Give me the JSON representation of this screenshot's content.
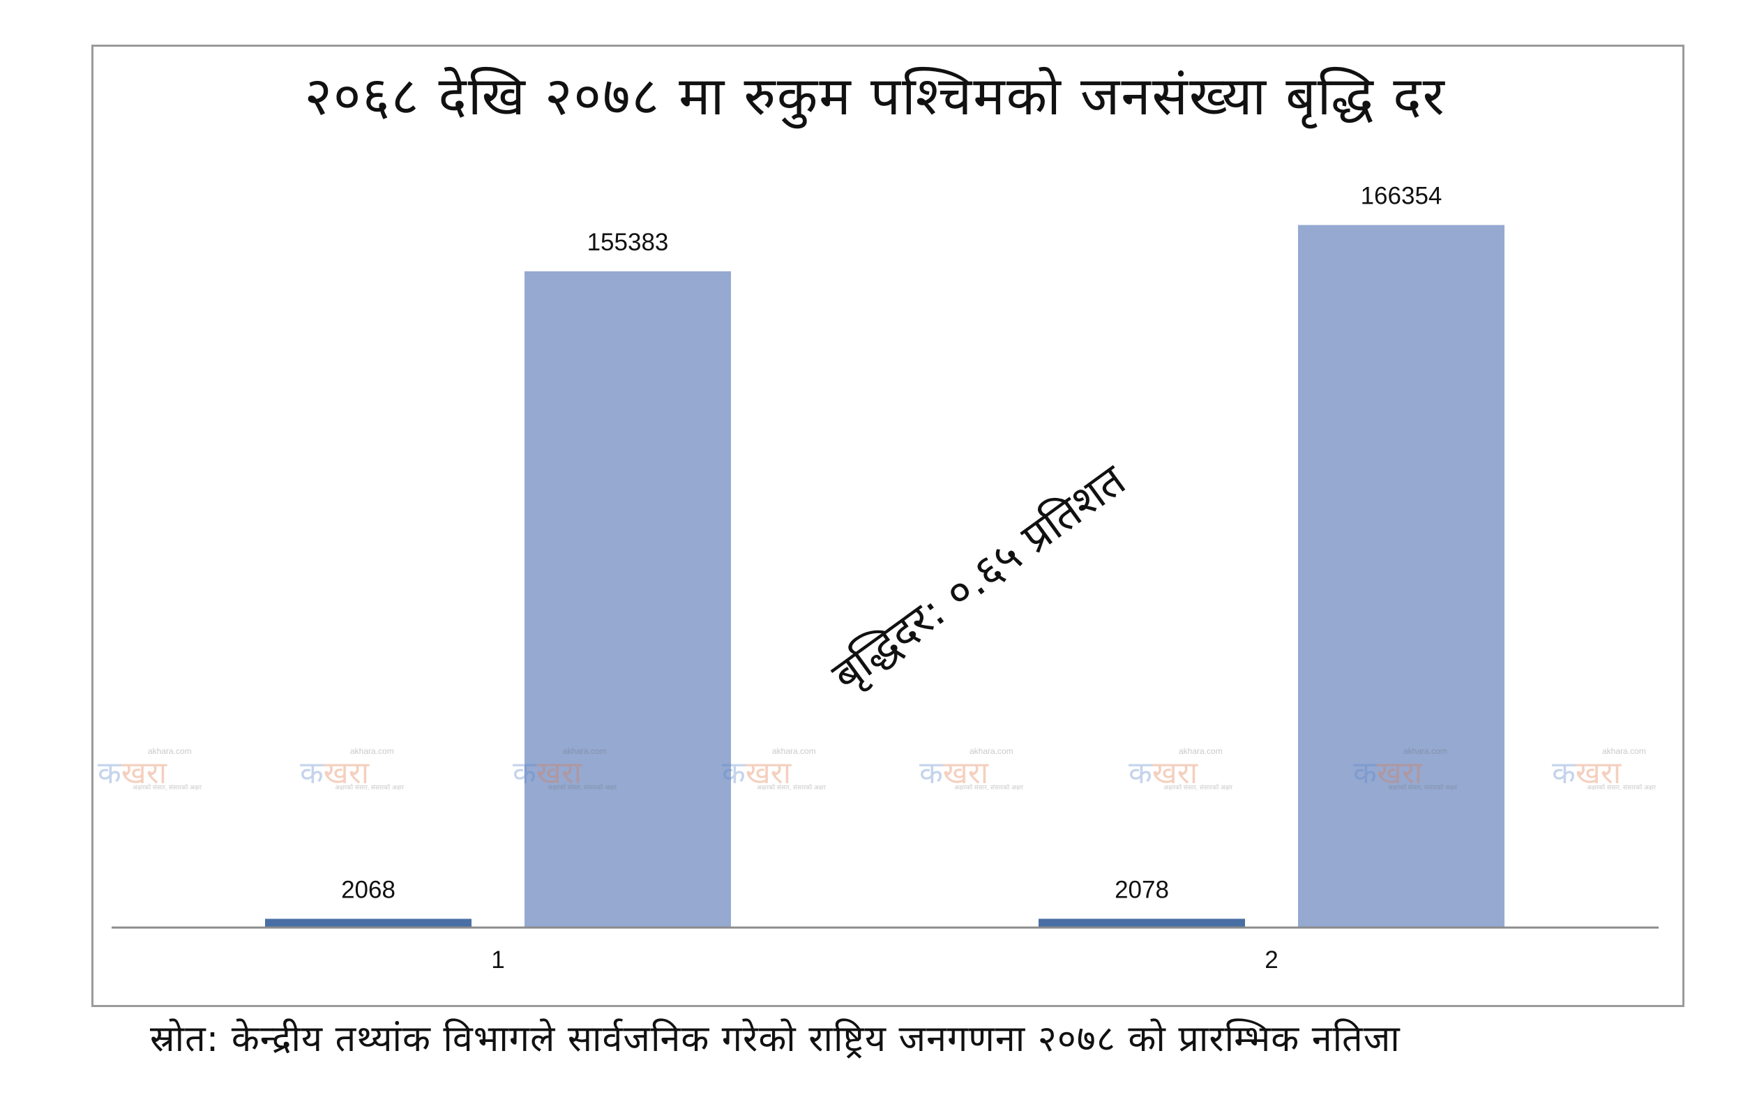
{
  "chart_data": {
    "type": "bar",
    "title": "२०६८ देखि २०७८ मा रुकुम पश्चिमको जनसंख्या बृद्धि दर",
    "categories": [
      "1",
      "2"
    ],
    "series": [
      {
        "values": [
          2068,
          2078
        ],
        "color": "#4a6fa5"
      },
      {
        "values": [
          155383,
          166354
        ],
        "color": "#95a9d1"
      }
    ],
    "ylim": [
      0,
      180000
    ],
    "grid": false,
    "legend": "none",
    "annotation": "बृद्धिदर: ०.६५ प्रतिशत"
  },
  "source_note": "स्रोत: केन्द्रीय तथ्यांक विभागले सार्वजनिक गरेको राष्ट्रिय जनगणना २०७८ को प्रारम्भिक नतिजा",
  "watermark": {
    "main_a": "क",
    "main_b": "खरा",
    "site": "akhara.com",
    "tagline": "अक्षरको संसार, संसारको अक्षर"
  }
}
